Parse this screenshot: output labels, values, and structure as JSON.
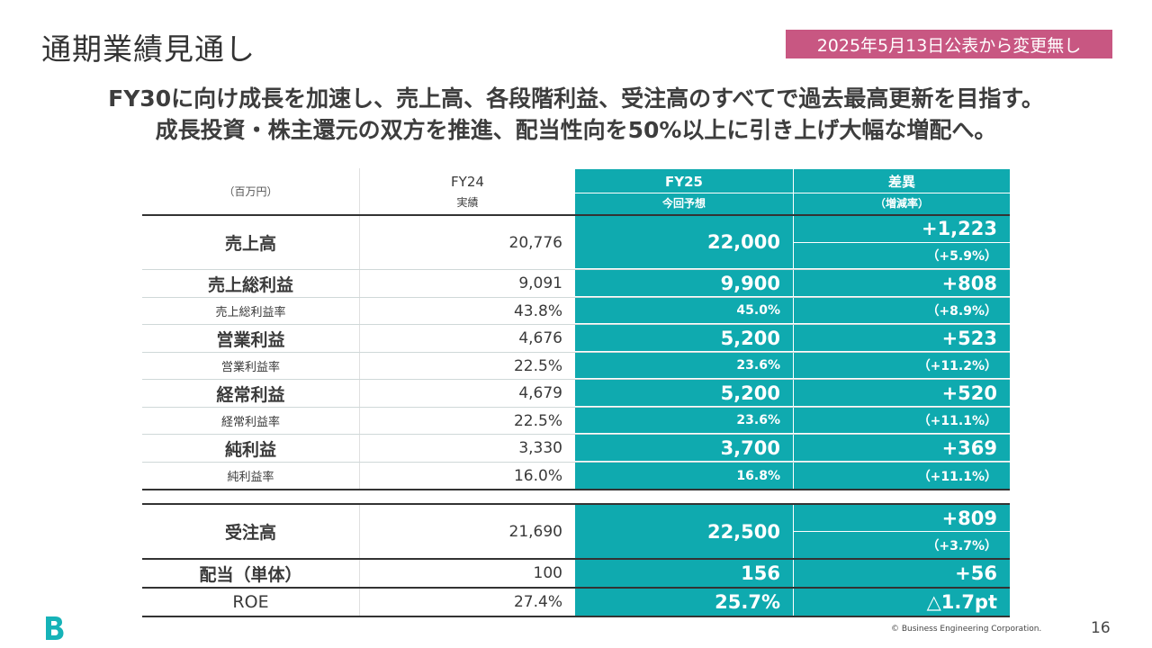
{
  "page": {
    "title": "通期業績見通し",
    "badge": "2025年5月13日公表から変更無し",
    "headline_1": "FY30に向け成長を加速し、売上高、各段階利益、受注高のすべてで過去最高更新を目指す。",
    "headline_2": "成長投資・株主還元の双方を推進、配当性向を50%以上に引き上げ大幅な増配へ。"
  },
  "colors": {
    "accent": "#0faaaf",
    "badge": "#c85782",
    "logo": "#16b3b8"
  },
  "table": {
    "unit": "（百万円）",
    "col_fy24_top": "FY24",
    "col_fy24_bot": "実績",
    "col_fy25_top": "FY25",
    "col_fy25_bot": "今回予想",
    "col_diff_top": "差異",
    "col_diff_bot": "（増減率）",
    "sales": {
      "label": "売上高",
      "fy24": "20,776",
      "fy25": "22,000",
      "diff": "+1,223",
      "rate": "（+5.9%）"
    },
    "gross": {
      "label": "売上総利益",
      "fy24": "9,091",
      "fy25": "9,900",
      "diff": "+808"
    },
    "gross_rate": {
      "label": "売上総利益率",
      "fy24": "43.8%",
      "fy25": "45.0%",
      "diff": "（+8.9%）"
    },
    "op": {
      "label": "営業利益",
      "fy24": "4,676",
      "fy25": "5,200",
      "diff": "+523"
    },
    "op_rate": {
      "label": "営業利益率",
      "fy24": "22.5%",
      "fy25": "23.6%",
      "diff": "（+11.2%）"
    },
    "ord": {
      "label": "経常利益",
      "fy24": "4,679",
      "fy25": "5,200",
      "diff": "+520"
    },
    "ord_rate": {
      "label": "経常利益率",
      "fy24": "22.5%",
      "fy25": "23.6%",
      "diff": "（+11.1%）"
    },
    "net": {
      "label": "純利益",
      "fy24": "3,330",
      "fy25": "3,700",
      "diff": "+369"
    },
    "net_rate": {
      "label": "純利益率",
      "fy24": "16.0%",
      "fy25": "16.8%",
      "diff": "（+11.1%）"
    },
    "orders": {
      "label": "受注高",
      "fy24": "21,690",
      "fy25": "22,500",
      "diff": "+809",
      "rate": "（+3.7%）"
    },
    "dividend": {
      "label": "配当（単体）",
      "fy24": "100",
      "fy25": "156",
      "diff": "+56"
    },
    "roe": {
      "label": "ROE",
      "fy24": "27.4%",
      "fy25": "25.7%",
      "diff": "△1.7pt"
    }
  },
  "footer": {
    "copyright": "© Business Engineering Corporation.",
    "page_number": "16",
    "logo_icon": "b-logo-icon"
  }
}
